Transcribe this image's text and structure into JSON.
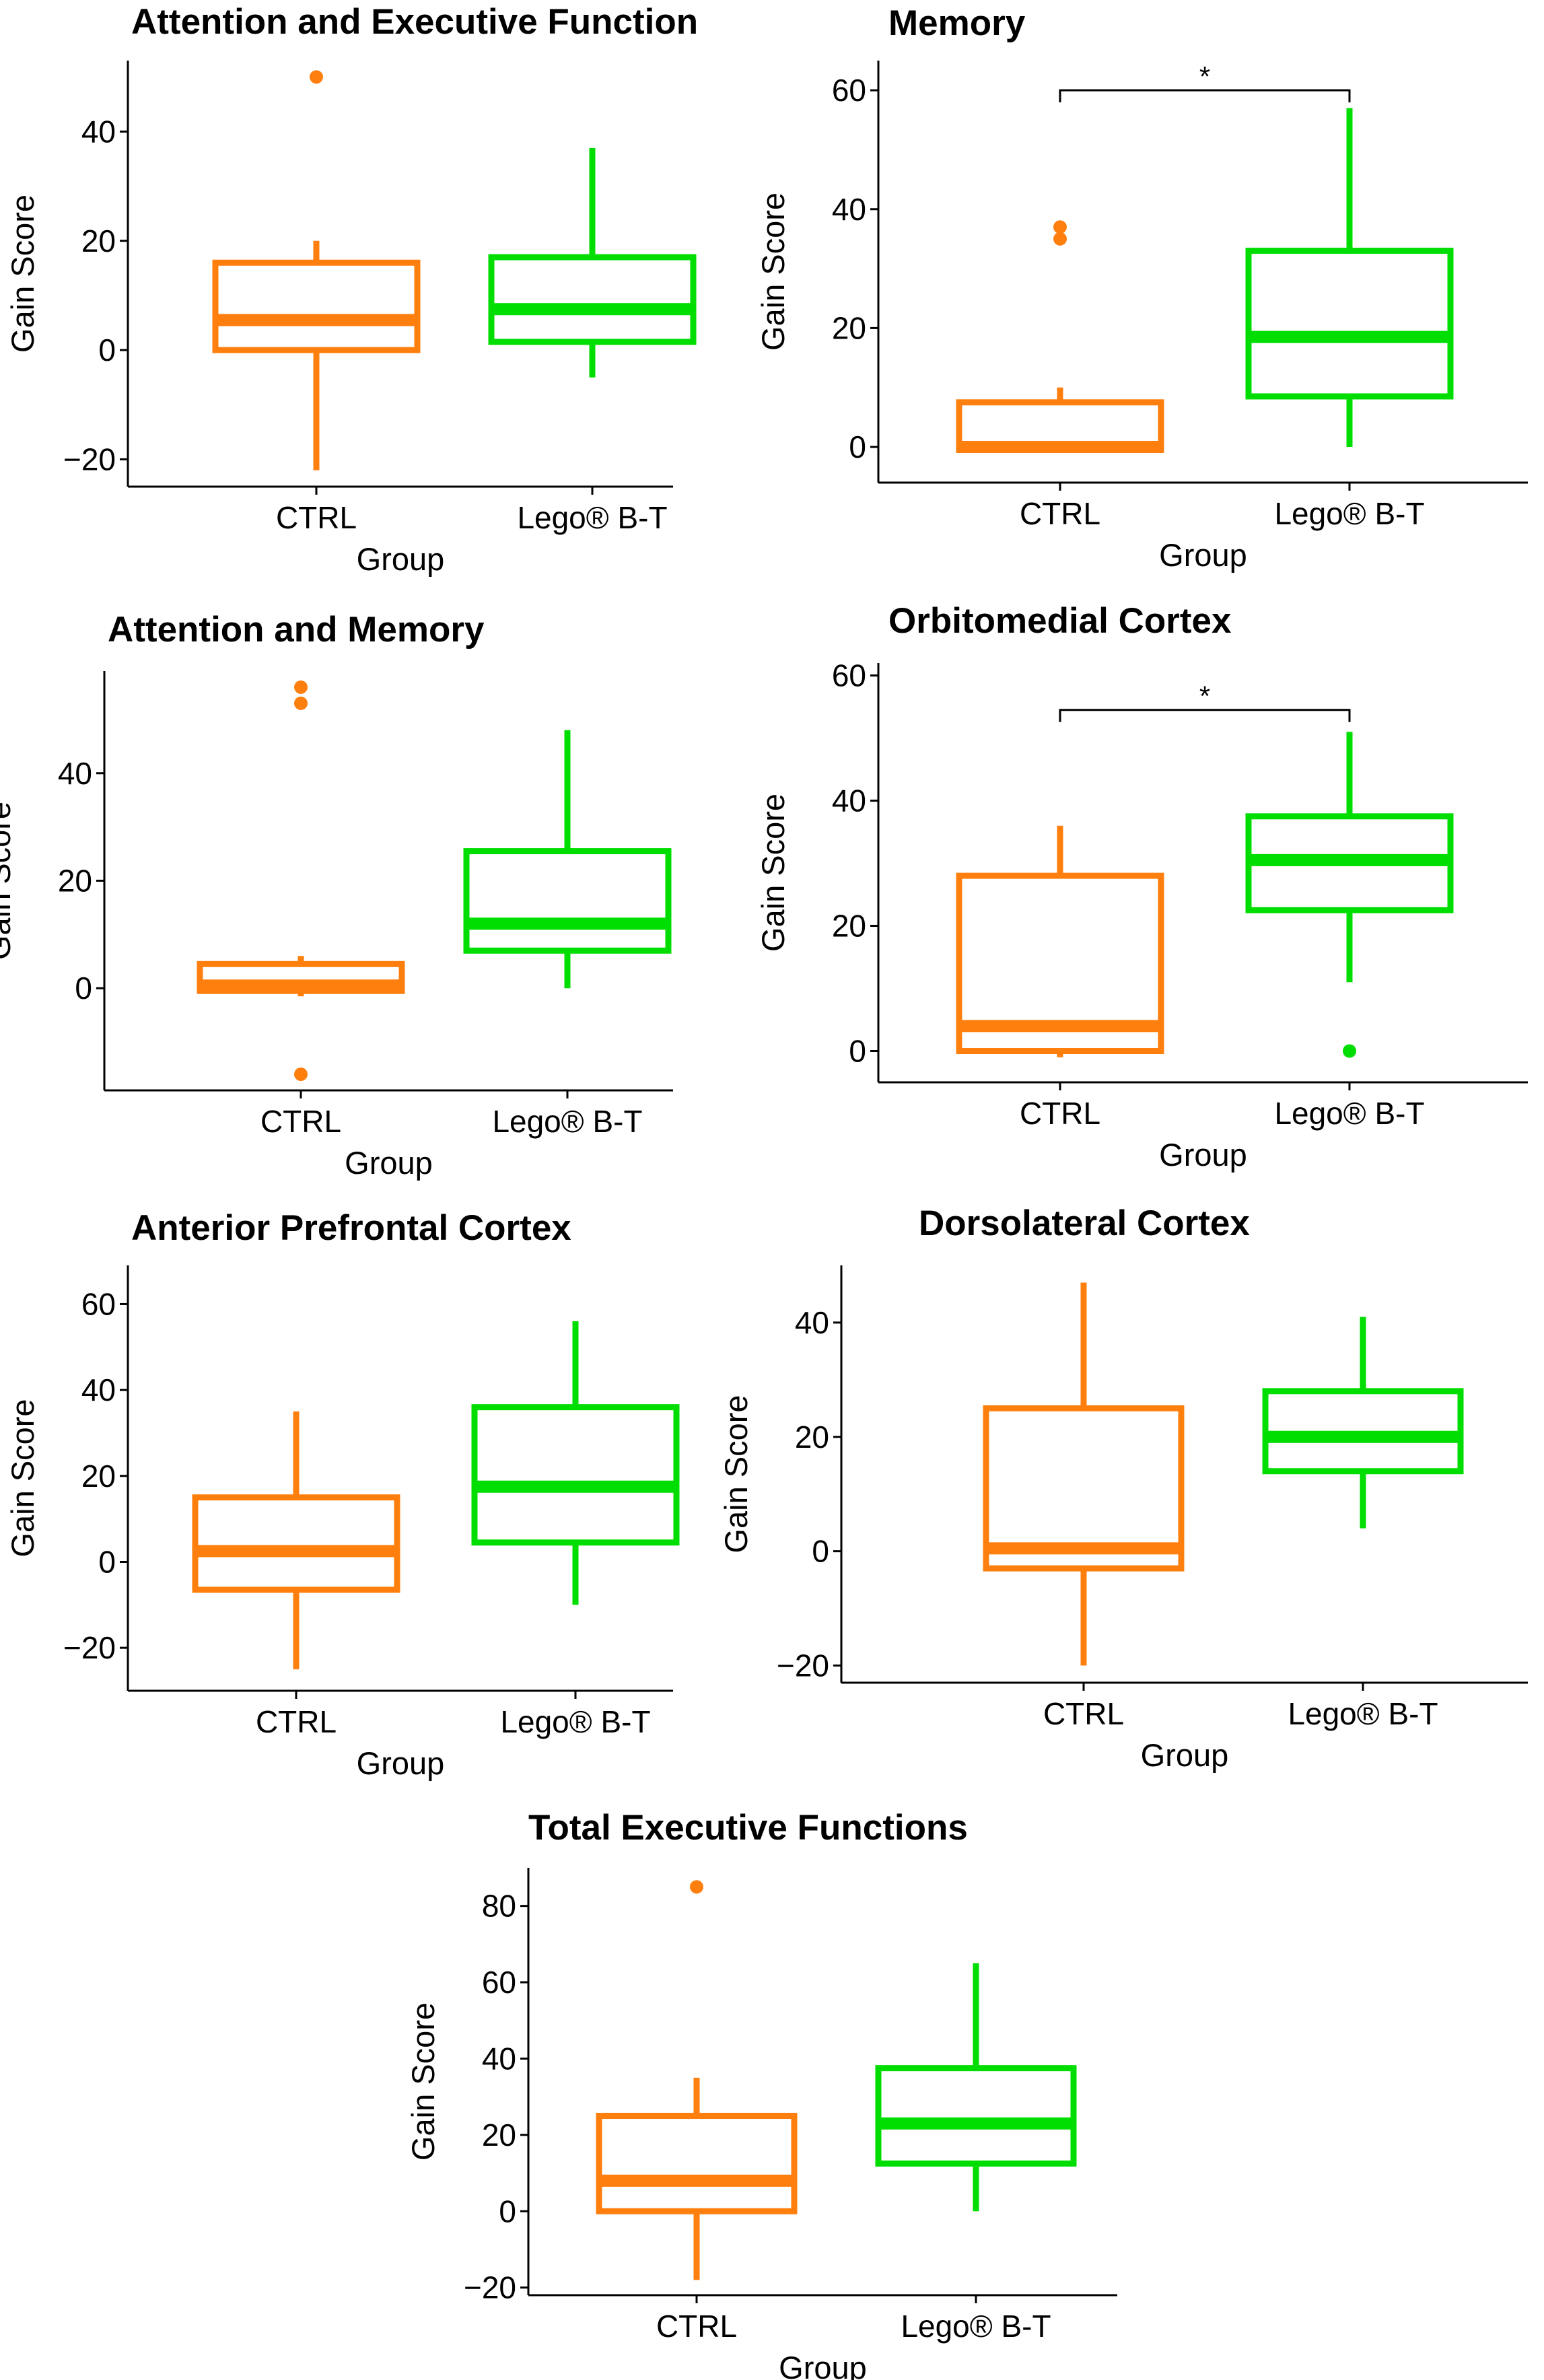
{
  "chart_data": [
    {
      "type": "box",
      "title": "Attention and Executive Function",
      "xlabel": "Group",
      "ylabel": "Gain Score",
      "ylim": [
        -25,
        53
      ],
      "yticks": [
        -20,
        0,
        20,
        40
      ],
      "categories": [
        "CTRL",
        "Lego® B-T"
      ],
      "boxes": [
        {
          "name": "CTRL",
          "color": "#ff7f0e",
          "whisker_low": -22,
          "q1": 0,
          "median": 5.5,
          "q3": 16,
          "whisker_high": 20,
          "outliers": [
            50
          ]
        },
        {
          "name": "Lego® B-T",
          "color": "#00dd00",
          "whisker_low": -5,
          "q1": 1.5,
          "median": 7.5,
          "q3": 17,
          "whisker_high": 37,
          "outliers": []
        }
      ]
    },
    {
      "type": "box",
      "title": "Memory",
      "xlabel": "Group",
      "ylabel": "Gain Score",
      "ylim": [
        -6,
        65
      ],
      "yticks": [
        0,
        20,
        40,
        60
      ],
      "categories": [
        "CTRL",
        "Lego® B-T"
      ],
      "boxes": [
        {
          "name": "CTRL",
          "color": "#ff7f0e",
          "whisker_low": -0.5,
          "q1": -0.5,
          "median": 0,
          "q3": 7.5,
          "whisker_high": 10,
          "outliers": [
            35,
            37
          ]
        },
        {
          "name": "Lego® B-T",
          "color": "#00dd00",
          "whisker_low": 0,
          "q1": 8.5,
          "median": 18.5,
          "q3": 33,
          "whisker_high": 57,
          "outliers": []
        }
      ],
      "significance": {
        "label": "*",
        "y": 60
      }
    },
    {
      "type": "box",
      "title": "Attention and Memory",
      "xlabel": "Group",
      "ylabel": "Gain Score",
      "ylim": [
        -19,
        59
      ],
      "yticks": [
        0,
        20,
        40
      ],
      "categories": [
        "CTRL",
        "Lego® B-T"
      ],
      "boxes": [
        {
          "name": "CTRL",
          "color": "#ff7f0e",
          "whisker_low": -1.5,
          "q1": -0.5,
          "median": 0.5,
          "q3": 4.5,
          "whisker_high": 6,
          "outliers": [
            -16,
            53,
            56
          ]
        },
        {
          "name": "Lego® B-T",
          "color": "#00dd00",
          "whisker_low": 0,
          "q1": 7,
          "median": 12,
          "q3": 25.5,
          "whisker_high": 48,
          "outliers": []
        }
      ]
    },
    {
      "type": "box",
      "title": "Orbitomedial Cortex",
      "xlabel": "Group",
      "ylabel": "Gain Score",
      "ylim": [
        -5,
        62
      ],
      "yticks": [
        0,
        20,
        40,
        60
      ],
      "categories": [
        "CTRL",
        "Lego® B-T"
      ],
      "boxes": [
        {
          "name": "CTRL",
          "color": "#ff7f0e",
          "whisker_low": -1,
          "q1": 0,
          "median": 4,
          "q3": 28,
          "whisker_high": 36,
          "outliers": []
        },
        {
          "name": "Lego® B-T",
          "color": "#00dd00",
          "whisker_low": 11,
          "q1": 22.5,
          "median": 30.5,
          "q3": 37.5,
          "whisker_high": 51,
          "outliers": [
            0
          ]
        }
      ],
      "significance": {
        "label": "*",
        "y": 54.5
      }
    },
    {
      "type": "box",
      "title": "Anterior Prefrontal Cortex",
      "xlabel": "Group",
      "ylabel": "Gain Score",
      "ylim": [
        -30,
        69
      ],
      "yticks": [
        -20,
        0,
        20,
        40,
        60
      ],
      "categories": [
        "CTRL",
        "Lego® B-T"
      ],
      "boxes": [
        {
          "name": "CTRL",
          "color": "#ff7f0e",
          "whisker_low": -25,
          "q1": -6.5,
          "median": 2.5,
          "q3": 15,
          "whisker_high": 35,
          "outliers": []
        },
        {
          "name": "Lego® B-T",
          "color": "#00dd00",
          "whisker_low": -10,
          "q1": 4.5,
          "median": 17.5,
          "q3": 36,
          "whisker_high": 56,
          "outliers": []
        }
      ]
    },
    {
      "type": "box",
      "title": "Dorsolateral Cortex",
      "xlabel": "Group",
      "ylabel": "Gain Score",
      "ylim": [
        -23,
        50
      ],
      "yticks": [
        -20,
        0,
        20,
        40
      ],
      "categories": [
        "CTRL",
        "Lego® B-T"
      ],
      "boxes": [
        {
          "name": "CTRL",
          "color": "#ff7f0e",
          "whisker_low": -20,
          "q1": -3,
          "median": 0.5,
          "q3": 25,
          "whisker_high": 47,
          "outliers": []
        },
        {
          "name": "Lego® B-T",
          "color": "#00dd00",
          "whisker_low": 4,
          "q1": 14,
          "median": 20,
          "q3": 28,
          "whisker_high": 41,
          "outliers": []
        }
      ]
    },
    {
      "type": "box",
      "title": "Total Executive Functions",
      "xlabel": "Group",
      "ylabel": "Gain Score",
      "ylim": [
        -22,
        90
      ],
      "yticks": [
        -20,
        0,
        20,
        40,
        60,
        80
      ],
      "categories": [
        "CTRL",
        "Lego® B-T"
      ],
      "boxes": [
        {
          "name": "CTRL",
          "color": "#ff7f0e",
          "whisker_low": -18,
          "q1": 0,
          "median": 8,
          "q3": 25,
          "whisker_high": 35,
          "outliers": [
            85
          ]
        },
        {
          "name": "Lego® B-T",
          "color": "#00dd00",
          "whisker_low": 0,
          "q1": 12.5,
          "median": 23,
          "q3": 37.5,
          "whisker_high": 65,
          "outliers": []
        }
      ]
    }
  ]
}
